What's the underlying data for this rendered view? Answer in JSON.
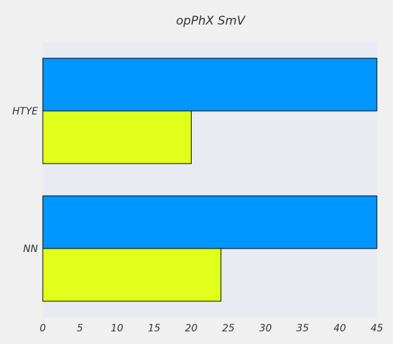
{
  "chart_data": {
    "type": "bar",
    "orientation": "horizontal",
    "title": "opPhX SmV",
    "xlabel": "",
    "ylabel": "",
    "categories": [
      "HTYE",
      "NN"
    ],
    "series": [
      {
        "color": "#0096ff",
        "values": [
          45,
          45
        ]
      },
      {
        "color": "#e0ff1a",
        "values": [
          20,
          24
        ]
      }
    ],
    "xlim": [
      0,
      45
    ],
    "xticks": [
      0,
      5,
      10,
      15,
      20,
      25,
      30,
      35,
      40,
      45
    ],
    "grid": false,
    "legend": "none",
    "plot_background": "#eaeaf2"
  }
}
